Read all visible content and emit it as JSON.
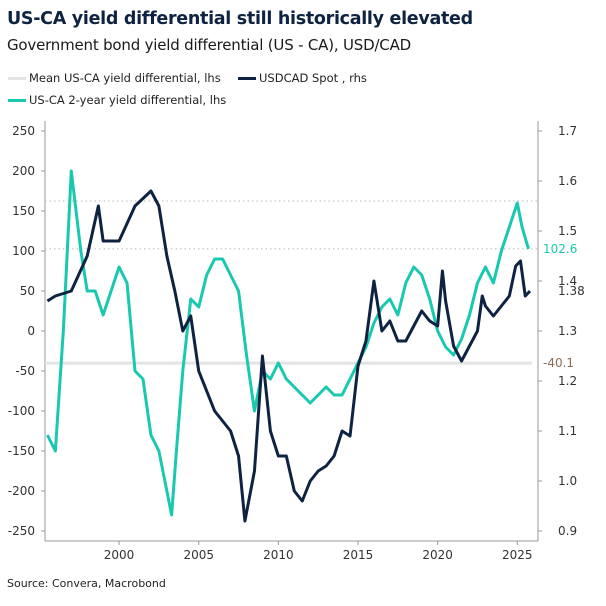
{
  "title": "US-CA yield differential still historically elevated",
  "subtitle": "Government bond yield differential (US - CA), USD/CAD",
  "source": "Source: Convera, Macrobond",
  "legend": [
    {
      "label": "Mean US-CA yield differential, lhs",
      "color": "#e3e3e3"
    },
    {
      "label": "USDCAD Spot , rhs",
      "color": "#0e2341"
    },
    {
      "label": "US-CA 2-year yield differential, lhs",
      "color": "#1ac8b0"
    }
  ],
  "chart_data": {
    "type": "line",
    "title": "US-CA yield differential still historically elevated",
    "left_axis": {
      "min": -250,
      "max": 250,
      "ticks": [
        250,
        200,
        150,
        100,
        50,
        0,
        -50,
        -100,
        -150,
        -200,
        -250
      ]
    },
    "right_axis": {
      "min": 0.9,
      "max": 1.7,
      "ticks": [
        "1.7",
        "1.6",
        "1.5",
        "1.4",
        "1.3",
        "1.2",
        "1.1",
        "1.0",
        "0.9"
      ]
    },
    "x_axis": {
      "min": 1995.35,
      "max": 2026.3,
      "ticks": [
        "2000",
        "2005",
        "2010",
        "2015",
        "2020",
        "2025"
      ]
    },
    "grid": false,
    "reference_lines": [
      {
        "axis": "left",
        "value": 162.5,
        "style": "dotted"
      },
      {
        "axis": "left",
        "value": 102.6,
        "style": "dotted"
      }
    ],
    "mean_line": {
      "value": -40.1,
      "label": "-40.1"
    },
    "end_labels": {
      "teal": "102.6",
      "spot": "1.38"
    },
    "series": [
      {
        "name": "US-CA 2-year yield differential, lhs",
        "axis": "left",
        "color": "#1ac8b0",
        "x": [
          1995.5,
          1996,
          1996.5,
          1997,
          1997.3,
          1997.6,
          1998,
          1998.5,
          1999,
          1999.5,
          2000,
          2000.5,
          2001,
          2001.5,
          2002,
          2002.5,
          2003,
          2003.3,
          2003.6,
          2004,
          2004.5,
          2005,
          2005.5,
          2006,
          2006.5,
          2007,
          2007.5,
          2008,
          2008.5,
          2009,
          2009.5,
          2010,
          2010.5,
          2011,
          2011.5,
          2012,
          2012.5,
          2013,
          2013.5,
          2014,
          2014.5,
          2015,
          2015.5,
          2016,
          2016.5,
          2017,
          2017.5,
          2018,
          2018.5,
          2019,
          2019.5,
          2020,
          2020.5,
          2021,
          2021.5,
          2022,
          2022.5,
          2023,
          2023.5,
          2024,
          2024.5,
          2025,
          2025.3,
          2025.7
        ],
        "y": [
          -130,
          -150,
          0,
          200,
          150,
          100,
          50,
          50,
          20,
          50,
          80,
          60,
          -50,
          -60,
          -130,
          -150,
          -200,
          -230,
          -150,
          -50,
          40,
          30,
          70,
          90,
          90,
          70,
          50,
          -30,
          -100,
          -50,
          -60,
          -40,
          -60,
          -70,
          -80,
          -90,
          -80,
          -70,
          -80,
          -80,
          -60,
          -40,
          -20,
          10,
          30,
          40,
          20,
          60,
          80,
          70,
          40,
          0,
          -20,
          -30,
          -10,
          20,
          60,
          80,
          60,
          100,
          130,
          160,
          130,
          102.6
        ]
      },
      {
        "name": "USDCAD Spot , rhs",
        "axis": "right",
        "color": "#0e2341",
        "x": [
          1995.5,
          1996,
          1997,
          1998,
          1998.7,
          1999,
          2000,
          2001,
          2002,
          2002.5,
          2003,
          2003.5,
          2004,
          2004.5,
          2005,
          2006,
          2007,
          2007.5,
          2007.9,
          2008.5,
          2009,
          2009.5,
          2010,
          2010.5,
          2011,
          2011.5,
          2012,
          2012.5,
          2013,
          2013.5,
          2014,
          2014.5,
          2015,
          2015.5,
          2016,
          2016.5,
          2017,
          2017.5,
          2018,
          2018.5,
          2019,
          2019.5,
          2020,
          2020.3,
          2020.5,
          2021,
          2021.5,
          2022,
          2022.5,
          2022.8,
          2023,
          2023.5,
          2024,
          2024.5,
          2024.9,
          2025.2,
          2025.5,
          2025.8
        ],
        "y": [
          1.36,
          1.37,
          1.38,
          1.45,
          1.55,
          1.48,
          1.48,
          1.55,
          1.58,
          1.55,
          1.45,
          1.38,
          1.3,
          1.33,
          1.22,
          1.14,
          1.1,
          1.05,
          0.92,
          1.02,
          1.25,
          1.1,
          1.05,
          1.05,
          0.98,
          0.96,
          1.0,
          1.02,
          1.03,
          1.05,
          1.1,
          1.09,
          1.23,
          1.28,
          1.4,
          1.3,
          1.32,
          1.28,
          1.28,
          1.31,
          1.34,
          1.32,
          1.31,
          1.42,
          1.36,
          1.27,
          1.24,
          1.27,
          1.3,
          1.37,
          1.35,
          1.33,
          1.35,
          1.37,
          1.43,
          1.44,
          1.37,
          1.38
        ]
      }
    ]
  }
}
